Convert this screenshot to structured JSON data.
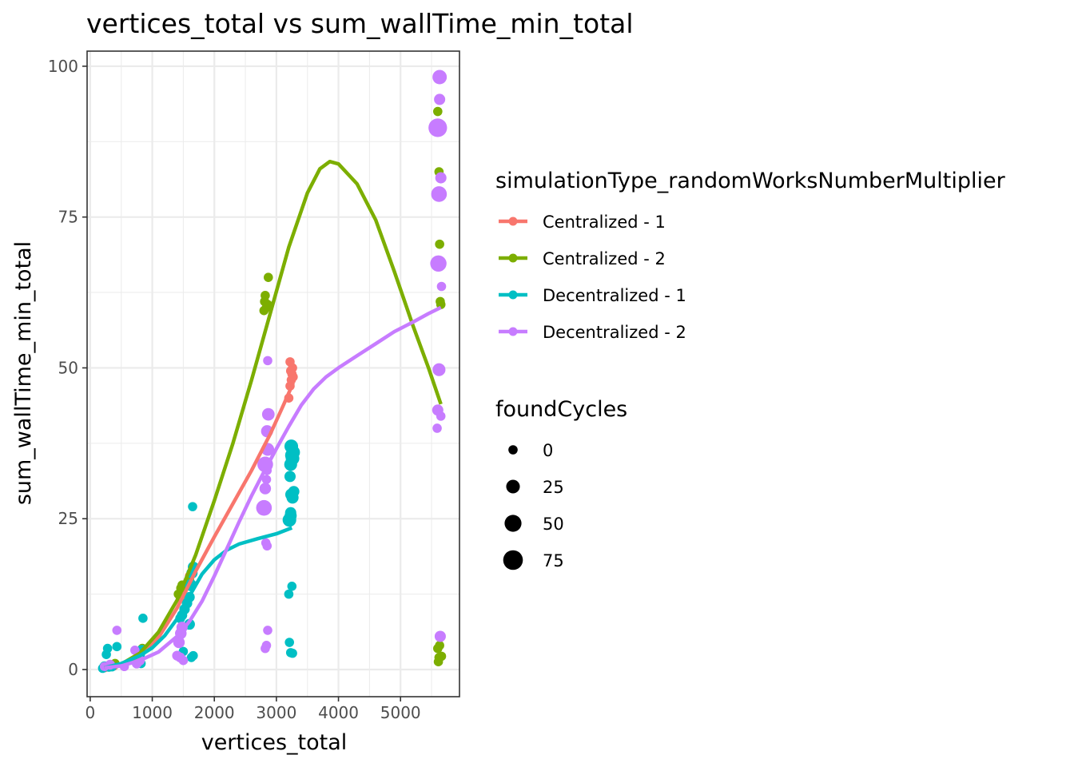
{
  "chart_data": {
    "type": "scatter",
    "title": "vertices_total  vs  sum_wallTime_min_total",
    "xlabel": "vertices_total",
    "ylabel": "sum_wallTime_min_total",
    "xlim": [
      -50,
      5950
    ],
    "ylim": [
      -4.5,
      102.5
    ],
    "x_ticks": [
      0,
      1000,
      2000,
      3000,
      4000,
      5000
    ],
    "y_ticks": [
      0,
      25,
      50,
      75,
      100
    ],
    "grid": true,
    "legend_position": "right",
    "color_legend": {
      "title": "simulationType_randomWorksNumberMultiplier",
      "entries": [
        "Centralized - 1",
        "Centralized - 2",
        "Decentralized - 1",
        "Decentralized - 2"
      ]
    },
    "size_legend": {
      "title": "foundCycles",
      "entries": [
        {
          "label": "0",
          "value": 0
        },
        {
          "label": "25",
          "value": 25
        },
        {
          "label": "50",
          "value": 50
        },
        {
          "label": "75",
          "value": 75
        }
      ]
    },
    "series": [
      {
        "name": "Centralized - 1",
        "color": "#F8766D",
        "points": [
          [
            230,
            0.3,
            0
          ],
          [
            300,
            0.5,
            0
          ],
          [
            380,
            0.6,
            0
          ],
          [
            700,
            1.5,
            0
          ],
          [
            780,
            2.2,
            0
          ],
          [
            850,
            3.2,
            0
          ],
          [
            1450,
            12.0,
            0
          ],
          [
            1500,
            13.2,
            0
          ],
          [
            1600,
            15.5,
            0
          ],
          [
            1650,
            16.5,
            0
          ],
          [
            3200,
            45.0,
            0
          ],
          [
            3220,
            47.0,
            0
          ],
          [
            3240,
            48.0,
            0
          ],
          [
            3250,
            49.0,
            0
          ],
          [
            3260,
            50.0,
            0
          ],
          [
            3220,
            51.0,
            0
          ],
          [
            3270,
            48.5,
            0
          ],
          [
            3230,
            49.5,
            0
          ]
        ],
        "smooth": [
          [
            230,
            0.3
          ],
          [
            500,
            0.8
          ],
          [
            800,
            2.3
          ],
          [
            1100,
            5.3
          ],
          [
            1400,
            10.2
          ],
          [
            1700,
            16.3
          ],
          [
            2000,
            22.0
          ],
          [
            2300,
            27.5
          ],
          [
            2600,
            33.0
          ],
          [
            2900,
            39.0
          ],
          [
            3100,
            43.5
          ],
          [
            3270,
            47.5
          ]
        ]
      },
      {
        "name": "Centralized - 2",
        "color": "#7CAE00",
        "points": [
          [
            250,
            0.5,
            0
          ],
          [
            320,
            0.8,
            0
          ],
          [
            400,
            1.0,
            0
          ],
          [
            780,
            2.5,
            0
          ],
          [
            840,
            3.5,
            0
          ],
          [
            1420,
            12.5,
            0
          ],
          [
            1460,
            13.5,
            0
          ],
          [
            1480,
            14.0,
            0
          ],
          [
            1600,
            15.0,
            0
          ],
          [
            1640,
            16.0,
            0
          ],
          [
            1680,
            17.0,
            0
          ],
          [
            2800,
            59.5,
            0
          ],
          [
            2810,
            61.0,
            0
          ],
          [
            2820,
            62.0,
            0
          ],
          [
            2840,
            60.0,
            0
          ],
          [
            2860,
            60.5,
            0
          ],
          [
            2870,
            65.0,
            0
          ],
          [
            5600,
            92.5,
            0
          ],
          [
            5620,
            82.5,
            0
          ],
          [
            5630,
            70.5,
            0
          ],
          [
            5640,
            61.0,
            0
          ],
          [
            5650,
            60.5,
            0
          ],
          [
            5600,
            3.5,
            0
          ],
          [
            5630,
            4.0,
            0
          ],
          [
            5620,
            2.0,
            0
          ],
          [
            5610,
            1.3,
            0
          ],
          [
            5650,
            5.5,
            0
          ],
          [
            5660,
            2.2,
            0
          ]
        ],
        "smooth": [
          [
            230,
            0.3
          ],
          [
            500,
            0.9
          ],
          [
            800,
            2.7
          ],
          [
            1100,
            6.2
          ],
          [
            1400,
            11.5
          ],
          [
            1700,
            19.0
          ],
          [
            2000,
            28.0
          ],
          [
            2300,
            37.5
          ],
          [
            2600,
            48.0
          ],
          [
            2900,
            59.0
          ],
          [
            3200,
            70.0
          ],
          [
            3500,
            79.0
          ],
          [
            3700,
            83.0
          ],
          [
            3860,
            84.2
          ],
          [
            4000,
            83.8
          ],
          [
            4300,
            80.5
          ],
          [
            4600,
            74.5
          ],
          [
            4900,
            66.0
          ],
          [
            5200,
            57.0
          ],
          [
            5450,
            50.0
          ],
          [
            5650,
            44.0
          ]
        ]
      },
      {
        "name": "Decentralized - 1",
        "color": "#00BFC4",
        "points": [
          [
            200,
            0.2,
            0
          ],
          [
            230,
            0.5,
            5
          ],
          [
            260,
            2.5,
            0
          ],
          [
            280,
            3.5,
            0
          ],
          [
            350,
            0.5,
            3
          ],
          [
            430,
            3.8,
            0
          ],
          [
            300,
            0.4,
            0
          ],
          [
            720,
            1.5,
            2
          ],
          [
            800,
            2.5,
            5
          ],
          [
            830,
            3.2,
            6
          ],
          [
            850,
            8.5,
            0
          ],
          [
            820,
            1.0,
            0
          ],
          [
            1450,
            8.5,
            3
          ],
          [
            1480,
            9.0,
            5
          ],
          [
            1520,
            10.0,
            6
          ],
          [
            1560,
            11.0,
            6
          ],
          [
            1600,
            12.0,
            6
          ],
          [
            1620,
            14.0,
            15
          ],
          [
            1640,
            16.0,
            10
          ],
          [
            1660,
            17.0,
            8
          ],
          [
            1650,
            27.0,
            0
          ],
          [
            1600,
            7.5,
            8
          ],
          [
            1630,
            2.0,
            0
          ],
          [
            1660,
            2.3,
            0
          ],
          [
            1500,
            3.0,
            0
          ],
          [
            3240,
            37.0,
            25
          ],
          [
            3250,
            35.5,
            25
          ],
          [
            3260,
            35.0,
            25
          ],
          [
            3230,
            34.0,
            20
          ],
          [
            3270,
            36.0,
            25
          ],
          [
            3220,
            32.0,
            10
          ],
          [
            3240,
            29.0,
            15
          ],
          [
            3260,
            28.5,
            15
          ],
          [
            3280,
            29.5,
            10
          ],
          [
            3230,
            26.0,
            10
          ],
          [
            3210,
            24.8,
            25
          ],
          [
            3230,
            25.5,
            15
          ],
          [
            3200,
            12.5,
            0
          ],
          [
            3250,
            13.8,
            0
          ],
          [
            3210,
            4.5,
            0
          ],
          [
            3230,
            2.8,
            0
          ],
          [
            3260,
            2.7,
            0
          ]
        ],
        "smooth": [
          [
            230,
            0.3
          ],
          [
            500,
            1.0
          ],
          [
            800,
            2.3
          ],
          [
            1000,
            3.6
          ],
          [
            1200,
            5.6
          ],
          [
            1400,
            8.4
          ],
          [
            1600,
            12.2
          ],
          [
            1800,
            15.8
          ],
          [
            2000,
            18.2
          ],
          [
            2200,
            19.8
          ],
          [
            2400,
            20.8
          ],
          [
            2700,
            21.7
          ],
          [
            3000,
            22.5
          ],
          [
            3250,
            23.5
          ]
        ]
      },
      {
        "name": "Decentralized - 2",
        "color": "#C77CFF",
        "points": [
          [
            230,
            0.5,
            0
          ],
          [
            320,
            0.8,
            3
          ],
          [
            430,
            6.5,
            0
          ],
          [
            550,
            0.5,
            0
          ],
          [
            720,
            3.2,
            0
          ],
          [
            750,
            1.0,
            3
          ],
          [
            800,
            1.5,
            3
          ],
          [
            1430,
            4.5,
            12
          ],
          [
            1460,
            6.0,
            12
          ],
          [
            1480,
            7.0,
            10
          ],
          [
            1450,
            2.0,
            3
          ],
          [
            1400,
            2.3,
            3
          ],
          [
            1500,
            1.5,
            0
          ],
          [
            2800,
            26.8,
            40
          ],
          [
            2820,
            34.0,
            40
          ],
          [
            2860,
            36.5,
            20
          ],
          [
            2850,
            39.5,
            15
          ],
          [
            2870,
            42.3,
            18
          ],
          [
            2820,
            30.0,
            12
          ],
          [
            2840,
            31.5,
            0
          ],
          [
            2850,
            33.0,
            0
          ],
          [
            2860,
            51.2,
            0
          ],
          [
            2830,
            21.0,
            0
          ],
          [
            2850,
            20.5,
            0
          ],
          [
            2840,
            4.0,
            0
          ],
          [
            2820,
            3.5,
            0
          ],
          [
            2860,
            6.5,
            0
          ],
          [
            5630,
            98.2,
            30
          ],
          [
            5600,
            89.8,
            65
          ],
          [
            5630,
            94.5,
            10
          ],
          [
            5650,
            81.5,
            10
          ],
          [
            5620,
            78.8,
            40
          ],
          [
            5610,
            67.3,
            45
          ],
          [
            5660,
            63.5,
            0
          ],
          [
            5620,
            49.7,
            20
          ],
          [
            5600,
            43.0,
            10
          ],
          [
            5650,
            42.0,
            0
          ],
          [
            5590,
            40.0,
            0
          ],
          [
            5640,
            5.5,
            10
          ]
        ],
        "smooth": [
          [
            230,
            0.3
          ],
          [
            500,
            0.6
          ],
          [
            800,
            1.5
          ],
          [
            1100,
            2.9
          ],
          [
            1400,
            5.5
          ],
          [
            1600,
            8.0
          ],
          [
            1800,
            11.3
          ],
          [
            2000,
            15.5
          ],
          [
            2200,
            20.0
          ],
          [
            2400,
            24.5
          ],
          [
            2600,
            28.8
          ],
          [
            2800,
            32.8
          ],
          [
            3000,
            36.6
          ],
          [
            3200,
            40.3
          ],
          [
            3400,
            43.8
          ],
          [
            3600,
            46.5
          ],
          [
            3800,
            48.5
          ],
          [
            4000,
            50.0
          ],
          [
            4300,
            52.0
          ],
          [
            4600,
            54.0
          ],
          [
            4900,
            56.0
          ],
          [
            5200,
            57.6
          ],
          [
            5450,
            59.0
          ],
          [
            5650,
            60.0
          ]
        ]
      }
    ]
  }
}
